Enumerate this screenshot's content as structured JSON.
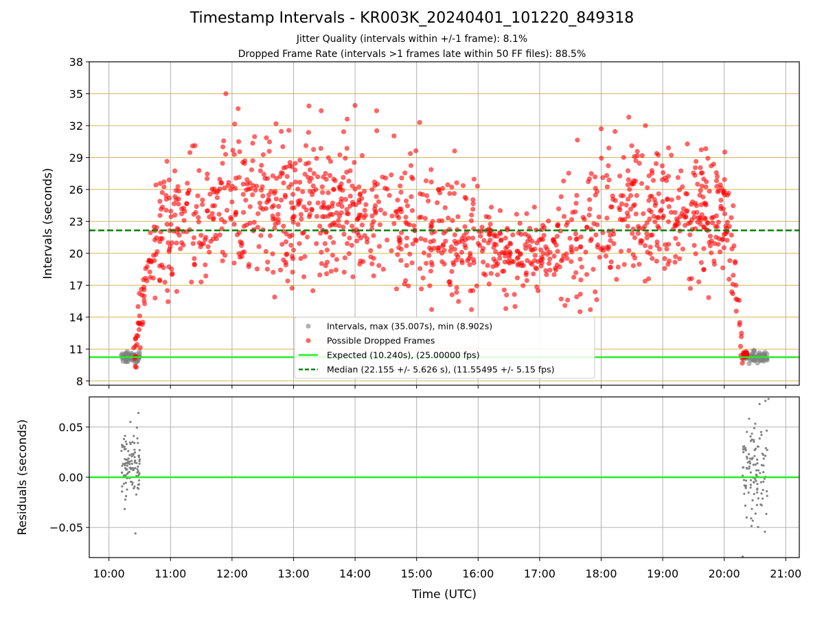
{
  "figure": {
    "title": "Timestamp Intervals - KR003K_20240401_101220_849318",
    "subtitle_1": "Jitter Quality (intervals within +/-1 frame): 8.1%",
    "subtitle_2": "Dropped Frame Rate (intervals >1 frames late within 50 FF files): 88.5%"
  },
  "chart_data": [
    {
      "type": "scatter",
      "ylabel": "Intervals (seconds)",
      "xlabel": "",
      "x_unit": "hours UTC",
      "xlim": [
        9.68,
        21.22
      ],
      "ylim": [
        7.6,
        38
      ],
      "yticks": [
        8,
        11,
        14,
        17,
        20,
        23,
        26,
        29,
        32,
        35,
        38
      ],
      "xticks": [
        10,
        11,
        12,
        13,
        14,
        15,
        16,
        17,
        18,
        19,
        20,
        21
      ],
      "xtick_labels": [
        "10:00",
        "11:00",
        "12:00",
        "13:00",
        "14:00",
        "15:00",
        "16:00",
        "17:00",
        "18:00",
        "19:00",
        "20:00",
        "21:00"
      ],
      "grid": true,
      "legend_position": "lower-center",
      "colors": {
        "intervals": "#808080",
        "dropped": "#ff0000",
        "expected": "#22ee22",
        "median": "#008000",
        "hgrid": "#d2b45a",
        "vgrid": "#b0b0b0"
      },
      "series": [
        {
          "name": "Intervals, max (35.007s), min (8.902s)",
          "kind": "points",
          "clusters": [
            {
              "x_range": [
                10.2,
                10.5
              ],
              "y_center": 10.2,
              "y_spread": 0.4
            },
            {
              "x_range": [
                20.3,
                20.7
              ],
              "y_center": 10.25,
              "y_spread": 0.45
            }
          ]
        },
        {
          "name": "Possible Dropped Frames",
          "kind": "points",
          "profile": [
            [
              10.4,
              10.4
            ],
            [
              10.6,
              17
            ],
            [
              10.75,
              21
            ],
            [
              11,
              23
            ],
            [
              11.5,
              23.5
            ],
            [
              12,
              24
            ],
            [
              12.5,
              24.2
            ],
            [
              13,
              24.5
            ],
            [
              13.5,
              24.5
            ],
            [
              14,
              24
            ],
            [
              14.5,
              23.3
            ],
            [
              15,
              22.5
            ],
            [
              15.5,
              22
            ],
            [
              16,
              21
            ],
            [
              16.5,
              20
            ],
            [
              17,
              20
            ],
            [
              17.5,
              21.3
            ],
            [
              18,
              23.5
            ],
            [
              18.5,
              24.5
            ],
            [
              19,
              24.5
            ],
            [
              19.5,
              24
            ],
            [
              19.9,
              24
            ],
            [
              20.1,
              22
            ],
            [
              20.2,
              16
            ],
            [
              20.3,
              10.5
            ]
          ],
          "notable_points": [
            [
              11.9,
              35.0
            ],
            [
              14.0,
              33.9
            ],
            [
              12.1,
              33.6
            ],
            [
              14.35,
              33.4
            ],
            [
              13.45,
              33.4
            ],
            [
              18.45,
              32.8
            ],
            [
              15.05,
              32.3
            ],
            [
              18.72,
              32.0
            ],
            [
              18.0,
              31.7
            ],
            [
              10.95,
              16.5
            ],
            [
              10.75,
              15.8
            ],
            [
              16.45,
              14.8
            ],
            [
              16.6,
              15.0
            ]
          ]
        },
        {
          "name": "Expected (10.240s), (25.00000 fps)",
          "kind": "hline",
          "y": 10.24
        },
        {
          "name": "Median (22.155 +/- 5.626 s), (11.55495 +/- 5.15 fps)",
          "kind": "hline",
          "y": 22.155
        }
      ]
    },
    {
      "type": "scatter",
      "ylabel": "Residuals (seconds)",
      "xlabel": "Time (UTC)",
      "x_unit": "hours UTC",
      "xlim": [
        9.68,
        21.22
      ],
      "ylim": [
        -0.08,
        0.08
      ],
      "yticks": [
        -0.05,
        0.0,
        0.05
      ],
      "ytick_labels": [
        "−0.05",
        "0.00",
        "0.05"
      ],
      "xticks": [
        10,
        11,
        12,
        13,
        14,
        15,
        16,
        17,
        18,
        19,
        20,
        21
      ],
      "xtick_labels": [
        "10:00",
        "11:00",
        "12:00",
        "13:00",
        "14:00",
        "15:00",
        "16:00",
        "17:00",
        "18:00",
        "19:00",
        "20:00",
        "21:00"
      ],
      "grid": true,
      "series": [
        {
          "kind": "points",
          "clusters": [
            {
              "x_range": [
                10.2,
                10.5
              ],
              "y_center": 0.01,
              "y_spread": 0.02
            },
            {
              "x_range": [
                20.3,
                20.7
              ],
              "y_center": 0.005,
              "y_spread": 0.03
            }
          ],
          "extremes": [
            [
              10.48,
              0.064
            ],
            [
              10.43,
              -0.056
            ],
            [
              20.72,
              0.078
            ],
            [
              20.67,
              0.076
            ],
            [
              20.3,
              -0.079
            ]
          ]
        },
        {
          "kind": "hline",
          "y": 0.0
        }
      ]
    }
  ]
}
